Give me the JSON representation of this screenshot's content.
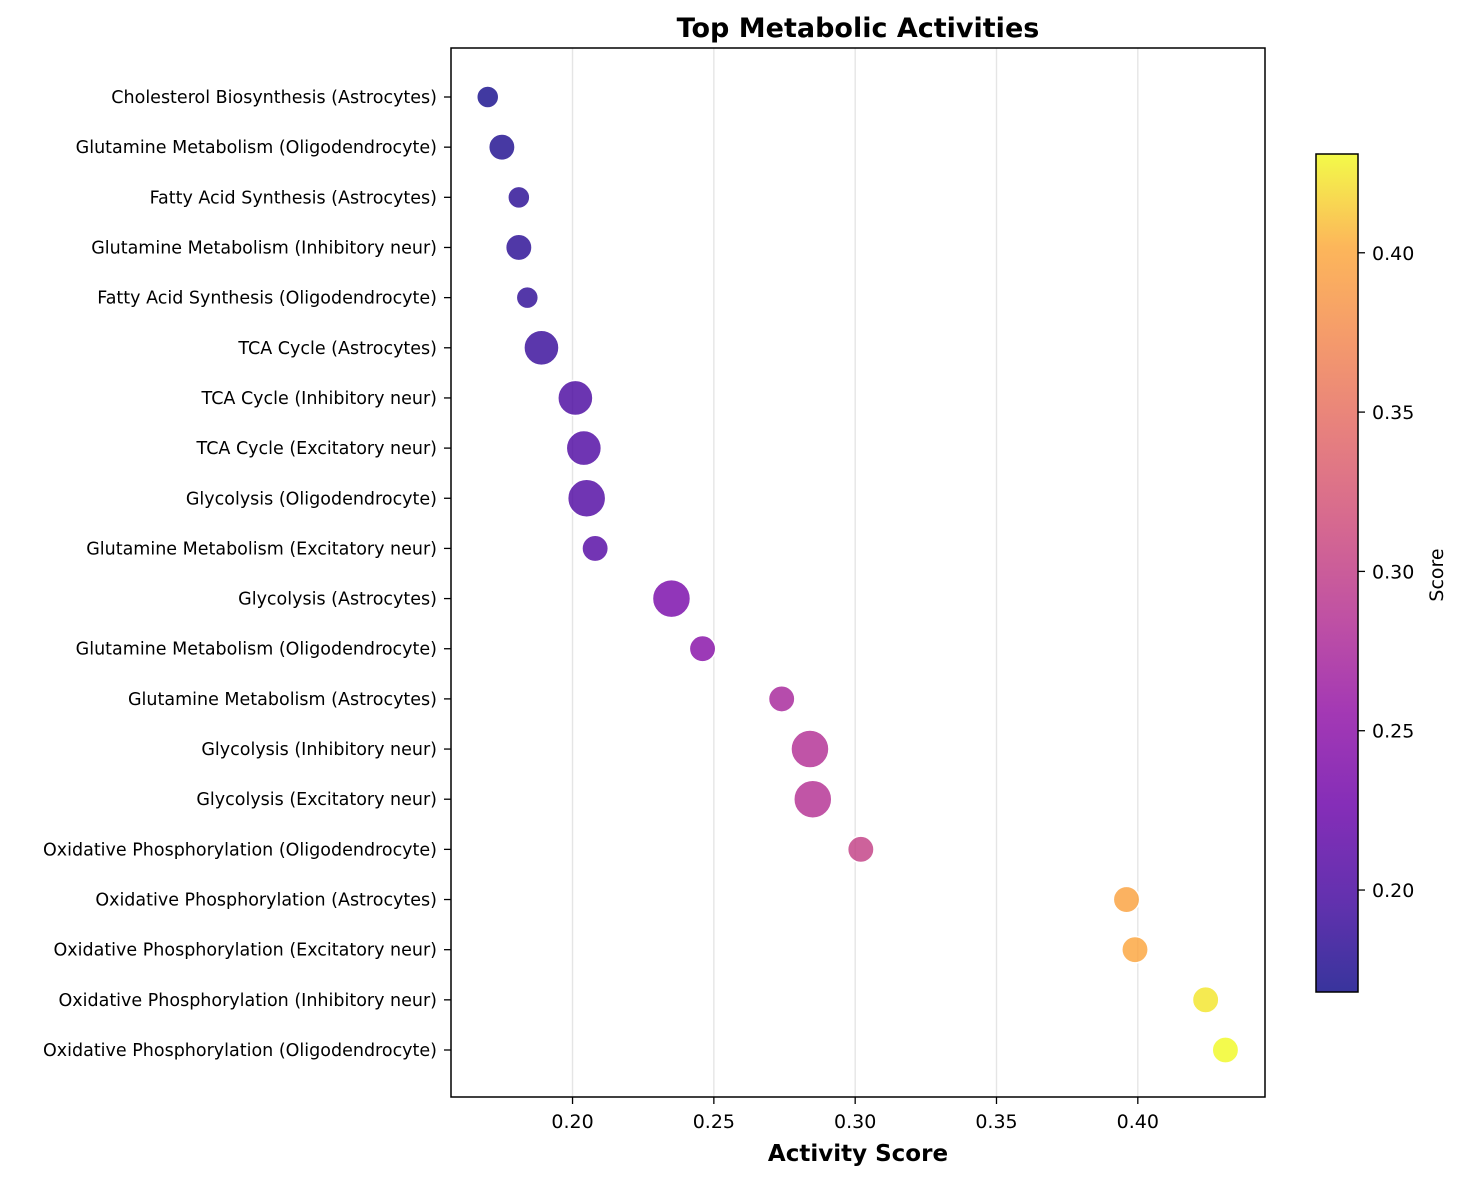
{
  "chart_data": {
    "type": "scatter",
    "title": "Top Metabolic Activities",
    "xlabel": "Activity Score",
    "ylabel": "",
    "xlim": [
      0.157,
      0.445
    ],
    "xticks": [
      0.2,
      0.25,
      0.3,
      0.35,
      0.4
    ],
    "xtick_labels": [
      "0.20",
      "0.25",
      "0.30",
      "0.35",
      "0.40"
    ],
    "grid": "vertical",
    "colormap": "plasma",
    "colorbar": {
      "label": "Score",
      "range": [
        0.168,
        0.431
      ],
      "ticks": [
        0.2,
        0.25,
        0.3,
        0.35,
        0.4
      ],
      "tick_labels": [
        "0.20",
        "0.25",
        "0.30",
        "0.35",
        "0.40"
      ]
    },
    "points": [
      {
        "label": "Cholesterol Biosynthesis (Astrocytes)",
        "x": 0.17,
        "size": 0.45
      },
      {
        "label": "Glutamine Metabolism (Oligodendrocyte)",
        "x": 0.175,
        "size": 0.6
      },
      {
        "label": "Fatty Acid Synthesis (Astrocytes)",
        "x": 0.181,
        "size": 0.45
      },
      {
        "label": "Glutamine Metabolism (Inhibitory neur)",
        "x": 0.181,
        "size": 0.6
      },
      {
        "label": "Fatty Acid Synthesis (Oligodendrocyte)",
        "x": 0.184,
        "size": 0.45
      },
      {
        "label": "TCA Cycle (Astrocytes)",
        "x": 0.189,
        "size": 0.9
      },
      {
        "label": "TCA Cycle (Inhibitory neur)",
        "x": 0.201,
        "size": 0.9
      },
      {
        "label": "TCA Cycle (Excitatory neur)",
        "x": 0.204,
        "size": 0.9
      },
      {
        "label": "Glycolysis (Oligodendrocyte)",
        "x": 0.205,
        "size": 1.0
      },
      {
        "label": "Glutamine Metabolism (Excitatory neur)",
        "x": 0.208,
        "size": 0.6
      },
      {
        "label": "Glycolysis (Astrocytes)",
        "x": 0.235,
        "size": 1.0
      },
      {
        "label": "Glutamine Metabolism (Oligodendrocyte)",
        "x": 0.246,
        "size": 0.6
      },
      {
        "label": "Glutamine Metabolism (Astrocytes)",
        "x": 0.274,
        "size": 0.6
      },
      {
        "label": "Glycolysis (Inhibitory neur)",
        "x": 0.284,
        "size": 1.0
      },
      {
        "label": "Glycolysis (Excitatory neur)",
        "x": 0.285,
        "size": 1.0
      },
      {
        "label": "Oxidative Phosphorylation (Oligodendrocyte)",
        "x": 0.302,
        "size": 0.6
      },
      {
        "label": "Oxidative Phosphorylation (Astrocytes)",
        "x": 0.396,
        "size": 0.6
      },
      {
        "label": "Oxidative Phosphorylation (Excitatory neur)",
        "x": 0.399,
        "size": 0.6
      },
      {
        "label": "Oxidative Phosphorylation (Inhibitory neur)",
        "x": 0.424,
        "size": 0.6
      },
      {
        "label": "Oxidative Phosphorylation (Oligodendrocyte)",
        "x": 0.431,
        "size": 0.6
      }
    ]
  }
}
